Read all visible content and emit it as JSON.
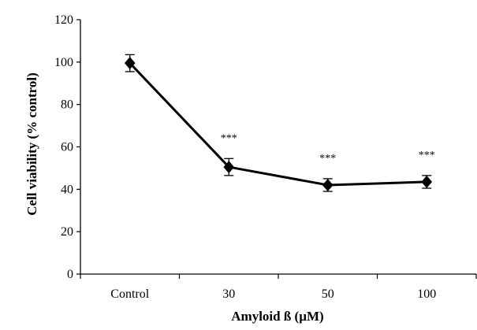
{
  "chart_data": {
    "type": "line",
    "title": "",
    "xlabel": "Amyloid ß (µM)",
    "ylabel": "Cell viability (% control)",
    "categories": [
      "Control",
      "30",
      "50",
      "100"
    ],
    "ylim": [
      0,
      120
    ],
    "yticks": [
      0,
      20,
      40,
      60,
      80,
      100,
      120
    ],
    "grid": false,
    "legend": "none",
    "series": [
      {
        "values": [
          99.5,
          50.5,
          42,
          43.5
        ],
        "errors": [
          4,
          4,
          3,
          3
        ],
        "annotations": [
          "",
          "***",
          "***",
          "***"
        ],
        "color": "#000000",
        "marker": "diamond"
      }
    ]
  }
}
